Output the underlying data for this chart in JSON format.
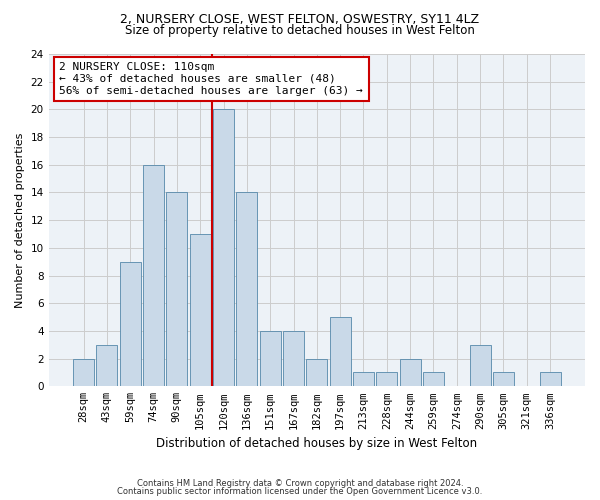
{
  "title_line1": "2, NURSERY CLOSE, WEST FELTON, OSWESTRY, SY11 4LZ",
  "title_line2": "Size of property relative to detached houses in West Felton",
  "xlabel": "Distribution of detached houses by size in West Felton",
  "ylabel": "Number of detached properties",
  "footer_line1": "Contains HM Land Registry data © Crown copyright and database right 2024.",
  "footer_line2": "Contains public sector information licensed under the Open Government Licence v3.0.",
  "annotation_line1": "2 NURSERY CLOSE: 110sqm",
  "annotation_line2": "← 43% of detached houses are smaller (48)",
  "annotation_line3": "56% of semi-detached houses are larger (63) →",
  "bar_labels": [
    "28sqm",
    "43sqm",
    "59sqm",
    "74sqm",
    "90sqm",
    "105sqm",
    "120sqm",
    "136sqm",
    "151sqm",
    "167sqm",
    "182sqm",
    "197sqm",
    "213sqm",
    "228sqm",
    "244sqm",
    "259sqm",
    "274sqm",
    "290sqm",
    "305sqm",
    "321sqm",
    "336sqm"
  ],
  "bar_values": [
    2,
    3,
    9,
    16,
    14,
    11,
    20,
    14,
    4,
    4,
    2,
    5,
    1,
    1,
    2,
    1,
    0,
    3,
    1,
    0,
    1
  ],
  "bar_color": "#c9d9e8",
  "bar_edgecolor": "#5588aa",
  "vline_color": "#cc0000",
  "annotation_box_color": "#cc0000",
  "ylim": [
    0,
    24
  ],
  "yticks": [
    0,
    2,
    4,
    6,
    8,
    10,
    12,
    14,
    16,
    18,
    20,
    22,
    24
  ],
  "grid_color": "#cccccc",
  "bg_color": "#edf2f7",
  "title_fontsize": 9,
  "subtitle_fontsize": 8.5,
  "ylabel_fontsize": 8,
  "xlabel_fontsize": 8.5,
  "tick_fontsize": 7.5,
  "footer_fontsize": 6,
  "annotation_fontsize": 8
}
